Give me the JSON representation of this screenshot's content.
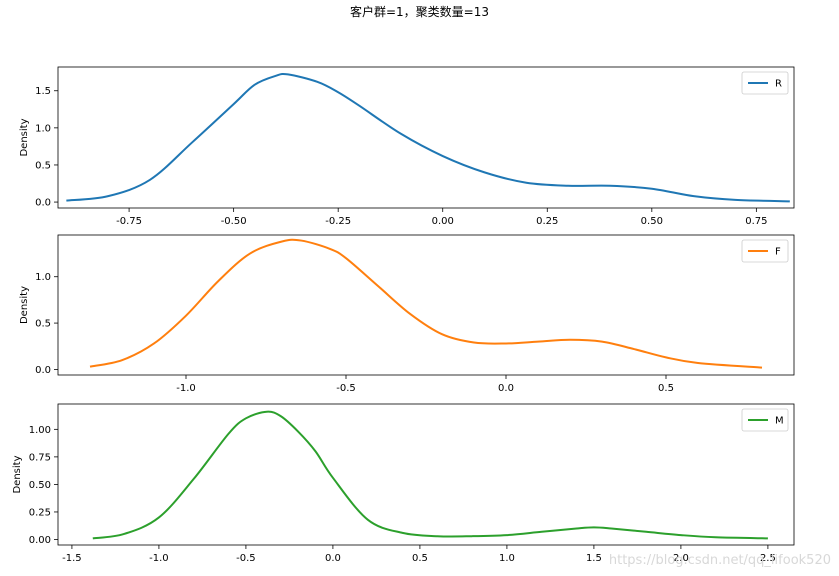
{
  "figure": {
    "suptitle": "客户群=1，聚类数量=13",
    "watermark": "https://blog.csdn.net/qq_lifook520"
  },
  "chart_data": [
    {
      "type": "line",
      "ylabel": "Density",
      "xlim": [
        -0.92,
        0.84
      ],
      "ylim": [
        -0.08,
        1.82
      ],
      "xticks": [
        -0.75,
        -0.5,
        -0.25,
        0.0,
        0.25,
        0.5,
        0.75
      ],
      "xtick_labels": [
        "-0.75",
        "-0.50",
        "-0.25",
        "0.00",
        "0.25",
        "0.50",
        "0.75"
      ],
      "yticks": [
        0.0,
        0.5,
        1.0,
        1.5
      ],
      "ytick_labels": [
        "0.0",
        "0.5",
        "1.0",
        "1.5"
      ],
      "legend_position": "top-right",
      "series": [
        {
          "name": "R",
          "color": "#1f77b4",
          "x": [
            -0.9,
            -0.8,
            -0.7,
            -0.6,
            -0.5,
            -0.45,
            -0.4,
            -0.37,
            -0.3,
            -0.25,
            -0.2,
            -0.1,
            0.0,
            0.1,
            0.2,
            0.3,
            0.4,
            0.5,
            0.6,
            0.7,
            0.83
          ],
          "y": [
            0.02,
            0.08,
            0.3,
            0.8,
            1.32,
            1.58,
            1.7,
            1.72,
            1.62,
            1.48,
            1.3,
            0.92,
            0.62,
            0.4,
            0.26,
            0.22,
            0.22,
            0.18,
            0.08,
            0.03,
            0.01
          ]
        }
      ]
    },
    {
      "type": "line",
      "ylabel": "Density",
      "xlim": [
        -1.4,
        0.9
      ],
      "ylim": [
        -0.06,
        1.45
      ],
      "xticks": [
        -1.0,
        -0.5,
        0.0,
        0.5
      ],
      "xtick_labels": [
        "-1.0",
        "-0.5",
        "0.0",
        "0.5"
      ],
      "yticks": [
        0.0,
        0.5,
        1.0
      ],
      "ytick_labels": [
        "0.0",
        "0.5",
        "1.0"
      ],
      "legend_position": "top-right",
      "series": [
        {
          "name": "F",
          "color": "#ff7f0e",
          "x": [
            -1.3,
            -1.2,
            -1.1,
            -1.0,
            -0.9,
            -0.8,
            -0.7,
            -0.64,
            -0.55,
            -0.5,
            -0.4,
            -0.3,
            -0.2,
            -0.1,
            0.0,
            0.1,
            0.2,
            0.3,
            0.4,
            0.5,
            0.6,
            0.8
          ],
          "y": [
            0.03,
            0.1,
            0.28,
            0.58,
            0.95,
            1.25,
            1.38,
            1.39,
            1.3,
            1.2,
            0.9,
            0.6,
            0.38,
            0.29,
            0.28,
            0.3,
            0.32,
            0.3,
            0.22,
            0.13,
            0.07,
            0.02
          ]
        }
      ]
    },
    {
      "type": "line",
      "ylabel": "Density",
      "xlim": [
        -1.58,
        2.65
      ],
      "ylim": [
        -0.05,
        1.23
      ],
      "xticks": [
        -1.5,
        -1.0,
        -0.5,
        0.0,
        0.5,
        1.0,
        1.5,
        2.0,
        2.5
      ],
      "xtick_labels": [
        "-1.5",
        "-1.0",
        "-0.5",
        "0.0",
        "0.5",
        "1.0",
        "1.5",
        "2.0",
        "2.5"
      ],
      "yticks": [
        0.0,
        0.25,
        0.5,
        0.75,
        1.0
      ],
      "ytick_labels": [
        "0.00",
        "0.25",
        "0.50",
        "0.75",
        "1.00"
      ],
      "legend_position": "top-right",
      "series": [
        {
          "name": "M",
          "color": "#2ca02c",
          "x": [
            -1.38,
            -1.2,
            -1.0,
            -0.8,
            -0.6,
            -0.5,
            -0.38,
            -0.3,
            -0.2,
            -0.1,
            0.0,
            0.2,
            0.4,
            0.6,
            0.8,
            1.0,
            1.2,
            1.4,
            1.5,
            1.6,
            1.8,
            2.0,
            2.2,
            2.5
          ],
          "y": [
            0.01,
            0.05,
            0.2,
            0.55,
            0.96,
            1.1,
            1.16,
            1.12,
            0.98,
            0.8,
            0.56,
            0.18,
            0.06,
            0.03,
            0.03,
            0.04,
            0.07,
            0.1,
            0.11,
            0.1,
            0.07,
            0.04,
            0.02,
            0.01
          ]
        }
      ]
    }
  ]
}
